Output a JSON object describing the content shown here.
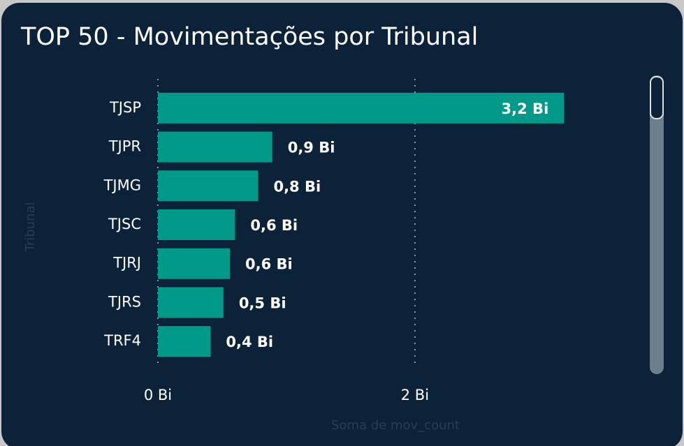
{
  "chart_data": {
    "type": "bar",
    "orientation": "horizontal",
    "title": "TOP 50 - Movimentações por Tribunal",
    "x_label": "Soma de mov_count",
    "y_label": "Tribunal",
    "categories": [
      "TJSP",
      "TJPR",
      "TJMG",
      "TJSC",
      "TJRJ",
      "TJRS",
      "TRF4"
    ],
    "values": [
      3.16,
      0.89,
      0.78,
      0.6,
      0.56,
      0.51,
      0.41
    ],
    "value_labels": [
      "3,2 Bi",
      "0,9 Bi",
      "0,8 Bi",
      "0,6 Bi",
      "0,6 Bi",
      "0,5 Bi",
      "0,4 Bi"
    ],
    "color": "#01998a",
    "xlim": [
      0,
      3.8
    ],
    "xticks": [
      {
        "value": 0,
        "label": "0 Bi"
      },
      {
        "value": 2,
        "label": "2 Bi"
      }
    ],
    "grid": true
  }
}
